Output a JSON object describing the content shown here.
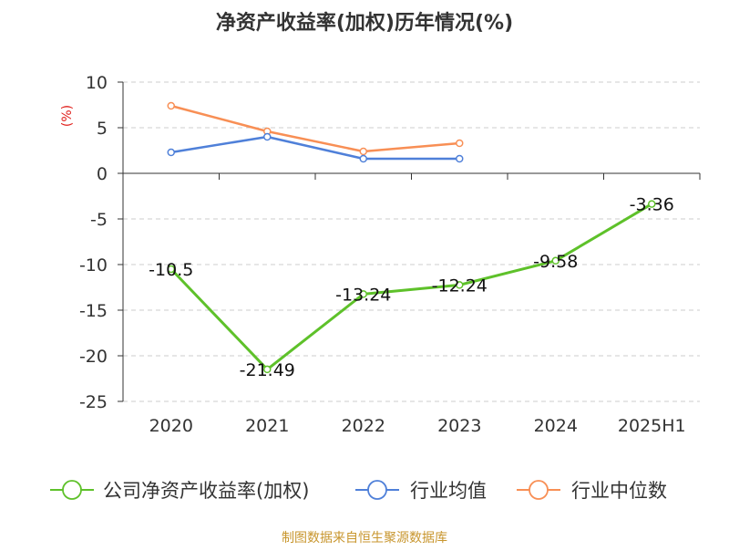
{
  "chart_data": {
    "type": "line",
    "title": "净资产收益率(加权)历年情况(%)",
    "ylabel": "(%)",
    "categories": [
      "2020",
      "2021",
      "2022",
      "2023",
      "2024",
      "2025H1"
    ],
    "ylim": [
      -25,
      10
    ],
    "yticks": [
      10,
      5,
      0,
      -5,
      -10,
      -15,
      -20,
      -25
    ],
    "ytick_labels": [
      "10",
      "5",
      "0",
      "-5",
      "-10",
      "-15",
      "-20",
      "-25"
    ],
    "grid": true,
    "legend_position": "bottom",
    "series": [
      {
        "name": "公司净资产收益率(加权)",
        "color": "#5ec12a",
        "values": [
          -10.5,
          -21.49,
          -13.24,
          -12.24,
          -9.58,
          -3.36
        ],
        "labels": [
          "-10.5",
          "-21.49",
          "-13.24",
          "-12.24",
          "-9.58",
          "-3.36"
        ]
      },
      {
        "name": "行业均值",
        "color": "#4f80d9",
        "values": [
          2.3,
          4.0,
          1.6,
          1.6,
          null,
          null
        ]
      },
      {
        "name": "行业中位数",
        "color": "#f88f55",
        "values": [
          7.4,
          4.6,
          2.4,
          3.3,
          null,
          null
        ]
      }
    ]
  },
  "footer": {
    "source": "制图数据来自恒生聚源数据库"
  }
}
